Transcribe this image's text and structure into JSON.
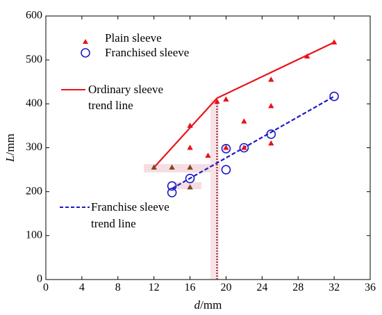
{
  "chart_data": {
    "type": "scatter",
    "xlabel": "d/mm",
    "ylabel": "L/mm",
    "xlim": [
      0,
      36
    ],
    "ylim": [
      0,
      600
    ],
    "x_ticks": [
      0,
      4,
      8,
      12,
      16,
      20,
      24,
      28,
      32,
      36
    ],
    "y_ticks": [
      0,
      100,
      200,
      300,
      400,
      500,
      600
    ],
    "grid": false,
    "legend_position": "top-left",
    "colors": {
      "plain": "#e8131a",
      "franchised": "#1a1ac8",
      "overlap": "#7a4a1e",
      "vertical_line": "#8b1a1a",
      "highlight": "#f6dde3"
    },
    "series": [
      {
        "name": "Plain sleeve",
        "marker": "triangle",
        "color": "#e8131a",
        "points": [
          {
            "x": 12,
            "y": 255
          },
          {
            "x": 14,
            "y": 255
          },
          {
            "x": 16,
            "y": 255
          },
          {
            "x": 16,
            "y": 210
          },
          {
            "x": 16,
            "y": 300
          },
          {
            "x": 16,
            "y": 350
          },
          {
            "x": 18,
            "y": 282
          },
          {
            "x": 19,
            "y": 405
          },
          {
            "x": 20,
            "y": 410
          },
          {
            "x": 20,
            "y": 300
          },
          {
            "x": 22,
            "y": 360
          },
          {
            "x": 22,
            "y": 300
          },
          {
            "x": 25,
            "y": 455
          },
          {
            "x": 25,
            "y": 395
          },
          {
            "x": 25,
            "y": 310
          },
          {
            "x": 29,
            "y": 508
          },
          {
            "x": 32,
            "y": 540
          }
        ]
      },
      {
        "name": "Franchised sleeve",
        "marker": "circle",
        "color": "#1a1ac8",
        "points": [
          {
            "x": 14,
            "y": 213
          },
          {
            "x": 14,
            "y": 198
          },
          {
            "x": 16,
            "y": 230
          },
          {
            "x": 20,
            "y": 298
          },
          {
            "x": 20,
            "y": 250
          },
          {
            "x": 22,
            "y": 300
          },
          {
            "x": 25,
            "y": 331
          },
          {
            "x": 32,
            "y": 417
          }
        ]
      }
    ],
    "trend_lines": [
      {
        "name": "Ordinary sleeve trend line",
        "style": "solid",
        "color": "#e8131a",
        "points": [
          {
            "x": 12,
            "y": 255
          },
          {
            "x": 19,
            "y": 413
          },
          {
            "x": 32,
            "y": 540
          }
        ]
      },
      {
        "name": "Franchise sleeve trend line",
        "style": "dashed",
        "color": "#1a1ac8",
        "points": [
          {
            "x": 14,
            "y": 207
          },
          {
            "x": 32,
            "y": 417
          }
        ]
      }
    ],
    "vertical_marker": {
      "x": 19,
      "y_top": 410,
      "style": "dotted"
    },
    "legend": [
      {
        "label": "Plain sleeve",
        "marker": "triangle"
      },
      {
        "label": "Franchised sleeve",
        "marker": "circle"
      }
    ],
    "annotations": {
      "ordinary": {
        "line1": "Ordinary sleeve",
        "line2": "trend line"
      },
      "franchise": {
        "line1": "Franchise sleeve",
        "line2": "trend line"
      }
    }
  }
}
